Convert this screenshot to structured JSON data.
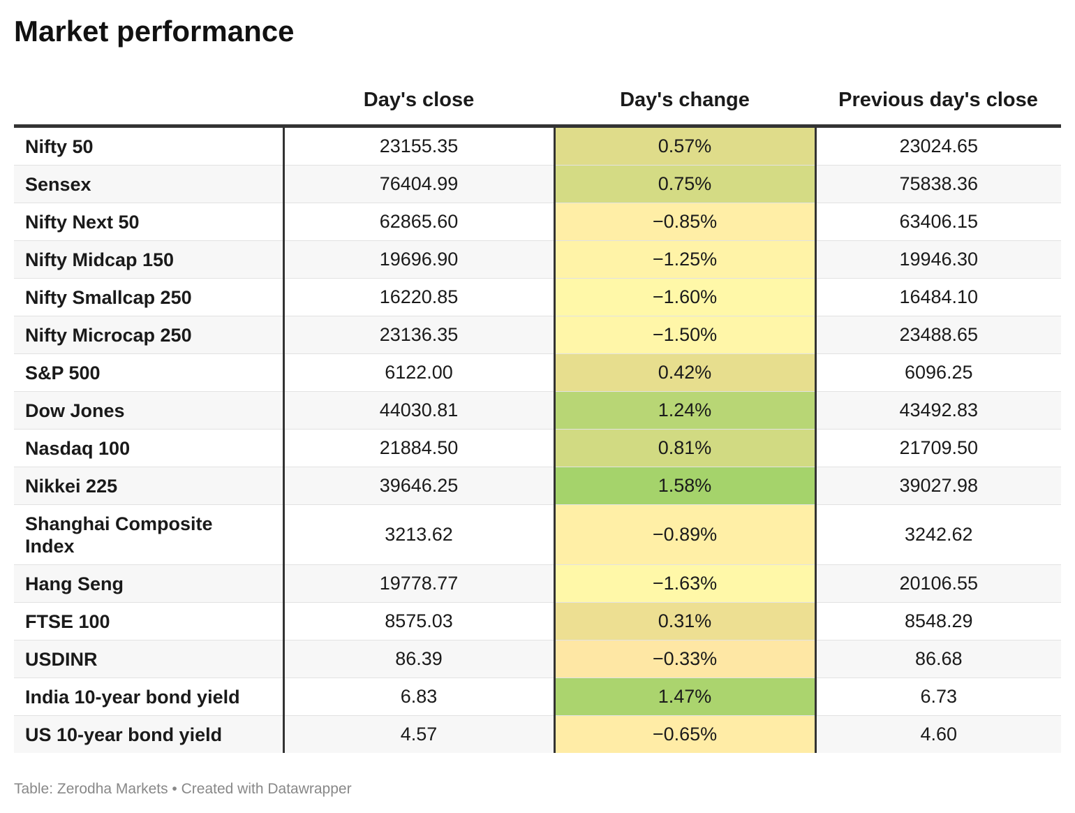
{
  "title": "Market performance",
  "footer": "Table: Zerodha Markets • Created with Datawrapper",
  "colors": {
    "positive_strong": "#a5d36b",
    "neutral": "#eedf92",
    "negative": "#fff8a8",
    "rule": "#333333"
  },
  "chart_data": {
    "type": "table",
    "columns": [
      "",
      "Day's close",
      "Day's change",
      "Previous day's close"
    ],
    "rows": [
      {
        "name": "Nifty 50",
        "close": "23155.35",
        "change": "0.57%",
        "change_value": 0.57,
        "prev": "23024.65"
      },
      {
        "name": "Sensex",
        "close": "76404.99",
        "change": "0.75%",
        "change_value": 0.75,
        "prev": "75838.36"
      },
      {
        "name": "Nifty Next 50",
        "close": "62865.60",
        "change": "−0.85%",
        "change_value": -0.85,
        "prev": "63406.15"
      },
      {
        "name": "Nifty Midcap 150",
        "close": "19696.90",
        "change": "−1.25%",
        "change_value": -1.25,
        "prev": "19946.30"
      },
      {
        "name": "Nifty Smallcap 250",
        "close": "16220.85",
        "change": "−1.60%",
        "change_value": -1.6,
        "prev": "16484.10"
      },
      {
        "name": "Nifty Microcap 250",
        "close": "23136.35",
        "change": "−1.50%",
        "change_value": -1.5,
        "prev": "23488.65"
      },
      {
        "name": "S&P 500",
        "close": "6122.00",
        "change": "0.42%",
        "change_value": 0.42,
        "prev": "6096.25"
      },
      {
        "name": "Dow Jones",
        "close": "44030.81",
        "change": "1.24%",
        "change_value": 1.24,
        "prev": "43492.83"
      },
      {
        "name": "Nasdaq 100",
        "close": "21884.50",
        "change": "0.81%",
        "change_value": 0.81,
        "prev": "21709.50"
      },
      {
        "name": "Nikkei 225",
        "close": "39646.25",
        "change": "1.58%",
        "change_value": 1.58,
        "prev": "39027.98"
      },
      {
        "name": "Shanghai Composite Index",
        "close": "3213.62",
        "change": "−0.89%",
        "change_value": -0.89,
        "prev": "3242.62",
        "tall": true
      },
      {
        "name": "Hang Seng",
        "close": "19778.77",
        "change": "−1.63%",
        "change_value": -1.63,
        "prev": "20106.55"
      },
      {
        "name": "FTSE 100",
        "close": "8575.03",
        "change": "0.31%",
        "change_value": 0.31,
        "prev": "8548.29"
      },
      {
        "name": "USDINR",
        "close": "86.39",
        "change": "−0.33%",
        "change_value": -0.33,
        "prev": "86.68"
      },
      {
        "name": "India 10-year bond yield",
        "close": "6.83",
        "change": "1.47%",
        "change_value": 1.47,
        "prev": "6.73"
      },
      {
        "name": "US 10-year bond yield",
        "close": "4.57",
        "change": "−0.65%",
        "change_value": -0.65,
        "prev": "4.60"
      }
    ]
  }
}
